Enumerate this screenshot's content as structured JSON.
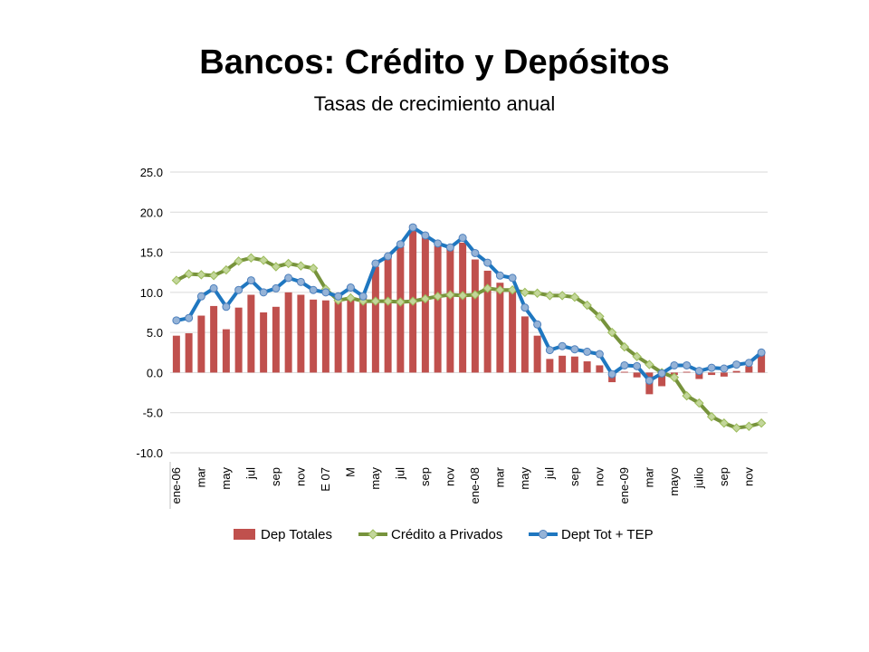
{
  "slide": {
    "title": "Bancos: Crédito y Depósitos",
    "subtitle": "Tasas de crecimiento anual"
  },
  "colors": {
    "bars": "#C0504D",
    "bars_edge": "#B34845",
    "credito_line": "#77933C",
    "credito_marker": "#C3D69B",
    "dept_line": "#1F77C0",
    "dept_marker": "#95B3D7",
    "grid": "#D9D9D9"
  },
  "chart_data": {
    "type": "bar",
    "ylim": [
      -10,
      25
    ],
    "yticks": [
      "25.0",
      "20.0",
      "15.0",
      "10.0",
      "5.0",
      "0.0",
      "-5.0",
      "-10.0"
    ],
    "ytick_values": [
      25,
      20,
      15,
      10,
      5,
      0,
      -5,
      -10
    ],
    "grid": true,
    "legend_position": "bottom",
    "xtick_labels": [
      {
        "index": 0,
        "label": "ene-06"
      },
      {
        "index": 2,
        "label": "mar"
      },
      {
        "index": 4,
        "label": "may"
      },
      {
        "index": 6,
        "label": "jul"
      },
      {
        "index": 8,
        "label": "sep"
      },
      {
        "index": 10,
        "label": "nov"
      },
      {
        "index": 12,
        "label": "E 07"
      },
      {
        "index": 14,
        "label": "M"
      },
      {
        "index": 16,
        "label": "may"
      },
      {
        "index": 18,
        "label": "jul"
      },
      {
        "index": 20,
        "label": "sep"
      },
      {
        "index": 22,
        "label": "nov"
      },
      {
        "index": 24,
        "label": "ene-08"
      },
      {
        "index": 26,
        "label": "mar"
      },
      {
        "index": 28,
        "label": "may"
      },
      {
        "index": 30,
        "label": "jul"
      },
      {
        "index": 32,
        "label": "sep"
      },
      {
        "index": 34,
        "label": "nov"
      },
      {
        "index": 36,
        "label": "ene-09"
      },
      {
        "index": 38,
        "label": "mar"
      },
      {
        "index": 40,
        "label": "mayo"
      },
      {
        "index": 42,
        "label": "julio"
      },
      {
        "index": 44,
        "label": "sep"
      },
      {
        "index": 46,
        "label": "nov"
      }
    ],
    "series": [
      {
        "name": "Dep Totales",
        "kind": "bar",
        "values": [
          4.6,
          4.9,
          7.1,
          8.3,
          5.4,
          8.1,
          9.7,
          7.5,
          8.2,
          10.0,
          9.7,
          9.1,
          9.0,
          9.5,
          9.3,
          9.6,
          13.2,
          14.6,
          15.7,
          18.4,
          16.9,
          15.8,
          15.4,
          16.2,
          14.1,
          12.7,
          11.2,
          10.1,
          7.0,
          4.6,
          1.7,
          2.1,
          2.0,
          1.4,
          0.9,
          -1.2,
          0.1,
          -0.6,
          -2.7,
          -1.7,
          -0.3,
          0.1,
          -0.8,
          -0.3,
          -0.5,
          0.2,
          0.8,
          2.3
        ]
      },
      {
        "name": "Crédito a Privados",
        "kind": "line",
        "values": [
          11.5,
          12.3,
          12.2,
          12.1,
          12.8,
          13.9,
          14.3,
          14.0,
          13.2,
          13.6,
          13.3,
          13.0,
          10.4,
          9.0,
          9.3,
          8.9,
          8.9,
          8.9,
          8.8,
          8.9,
          9.2,
          9.5,
          9.7,
          9.6,
          9.7,
          10.5,
          10.3,
          10.3,
          10.0,
          9.9,
          9.6,
          9.6,
          9.4,
          8.4,
          7.0,
          5.0,
          3.2,
          2.0,
          1.0,
          0.0,
          -0.6,
          -2.9,
          -3.8,
          -5.5,
          -6.3,
          -6.9,
          -6.7,
          -6.3
        ]
      },
      {
        "name": "Dept Tot + TEP",
        "kind": "line",
        "values": [
          6.5,
          6.8,
          9.5,
          10.5,
          8.2,
          10.3,
          11.5,
          10.0,
          10.5,
          11.8,
          11.3,
          10.3,
          10.0,
          9.5,
          10.6,
          9.5,
          13.6,
          14.5,
          16.0,
          18.1,
          17.1,
          16.1,
          15.6,
          16.8,
          14.9,
          13.7,
          12.1,
          11.8,
          8.1,
          6.0,
          2.8,
          3.3,
          2.9,
          2.6,
          2.3,
          -0.2,
          0.9,
          0.8,
          -1.0,
          -0.1,
          0.9,
          0.9,
          0.2,
          0.6,
          0.5,
          1.0,
          1.2,
          2.5
        ]
      }
    ]
  }
}
